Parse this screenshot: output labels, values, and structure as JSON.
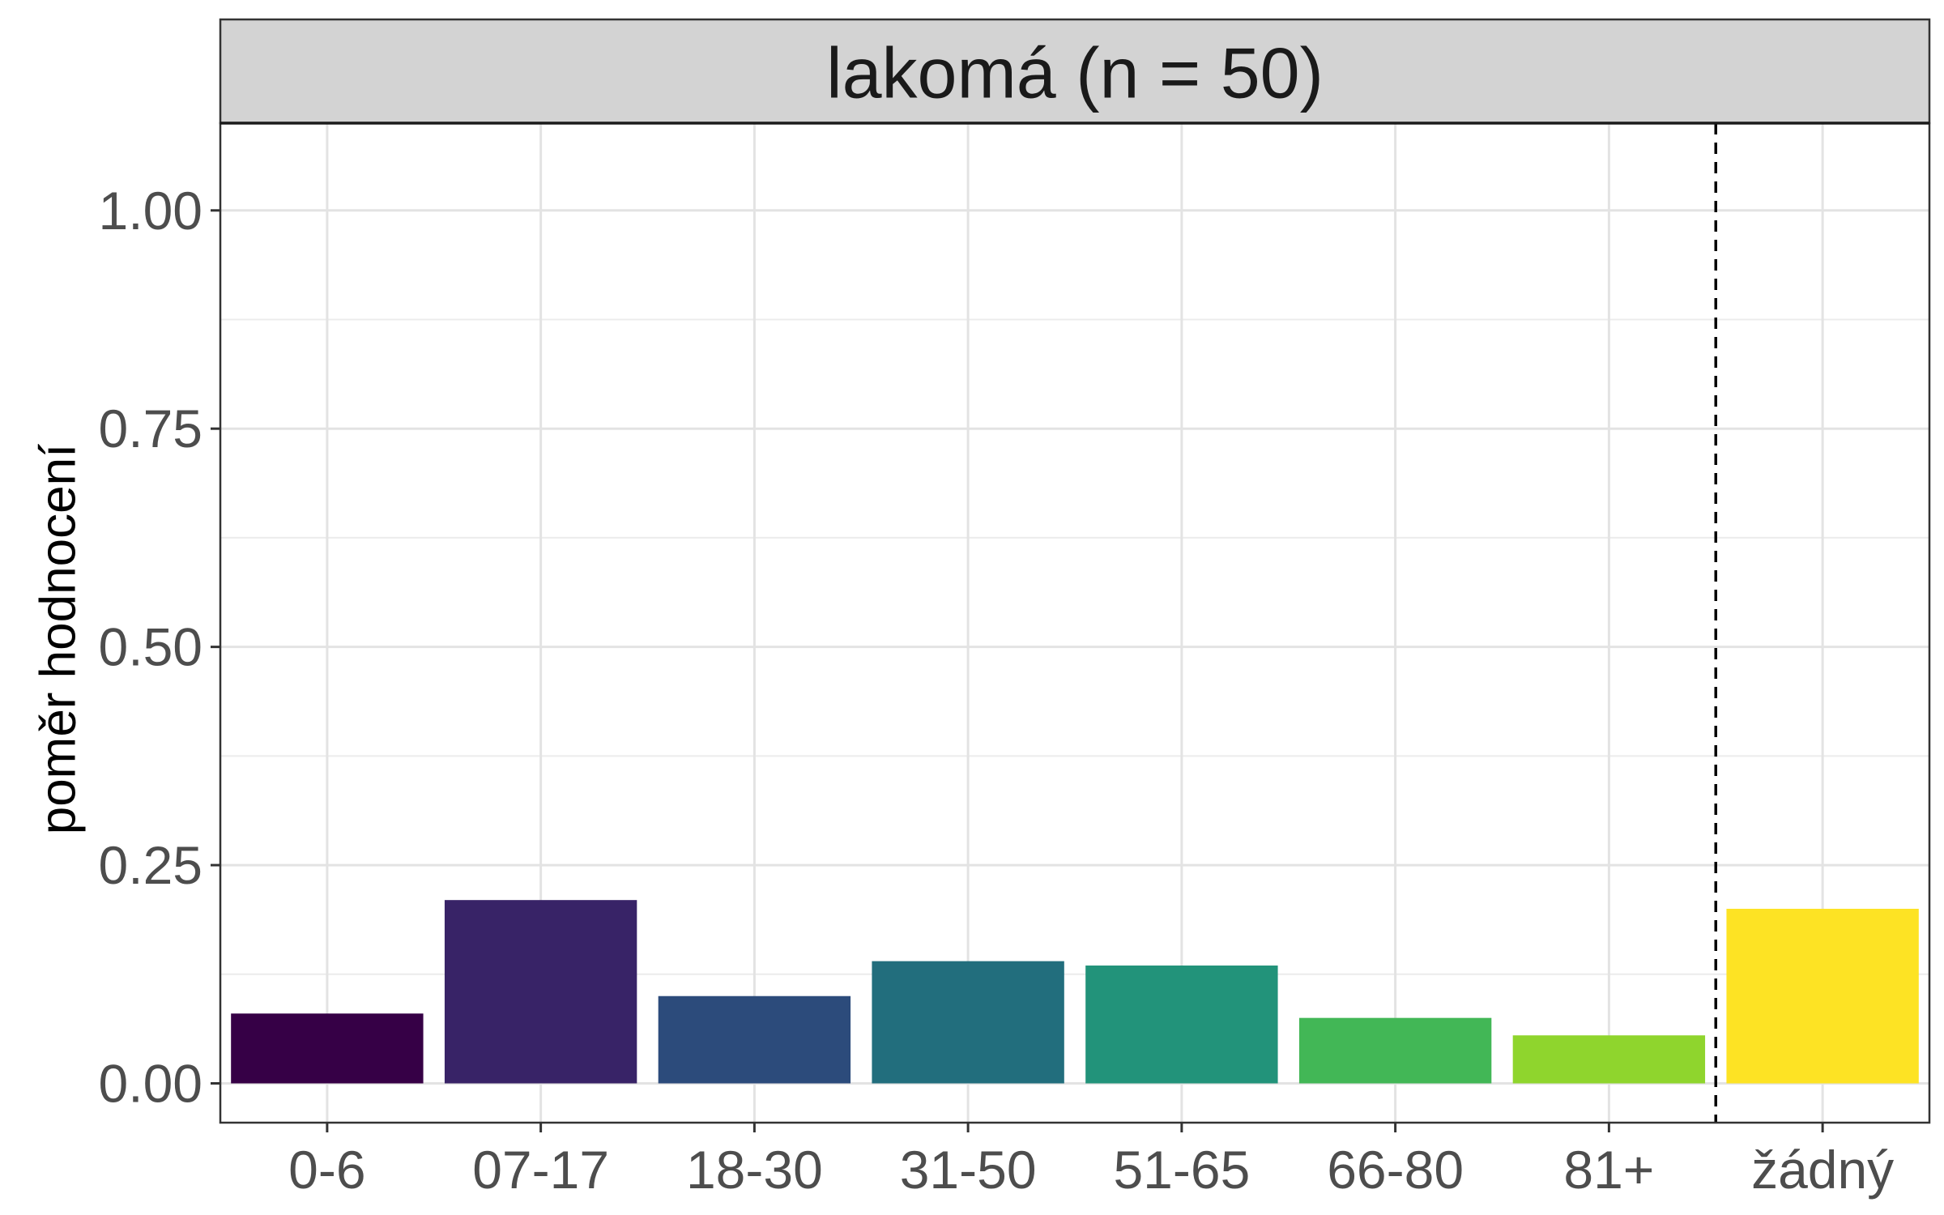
{
  "chart_data": {
    "type": "bar",
    "facet_title": "lakomá (n = 50)",
    "xlabel": "",
    "ylabel": "poměr hodnocení",
    "categories": [
      "0-6",
      "07-17",
      "18-30",
      "31-50",
      "51-65",
      "66-80",
      "81+",
      "žádný"
    ],
    "values": [
      0.08,
      0.21,
      0.1,
      0.14,
      0.135,
      0.075,
      0.055,
      0.2
    ],
    "colors": [
      "#360046",
      "#382367",
      "#2c4b7b",
      "#226e7d",
      "#22937a",
      "#42b756",
      "#8fd52d",
      "#fde324"
    ],
    "ylim": [
      -0.045,
      1.1
    ],
    "y_ticks": [
      0.0,
      0.25,
      0.5,
      0.75,
      1.0
    ],
    "y_tick_labels": [
      "0.00",
      "0.25",
      "0.50",
      "0.75",
      "1.00"
    ],
    "separator_after_category": "81+",
    "separator_style": "dashed",
    "grid": true,
    "legend": "none"
  }
}
